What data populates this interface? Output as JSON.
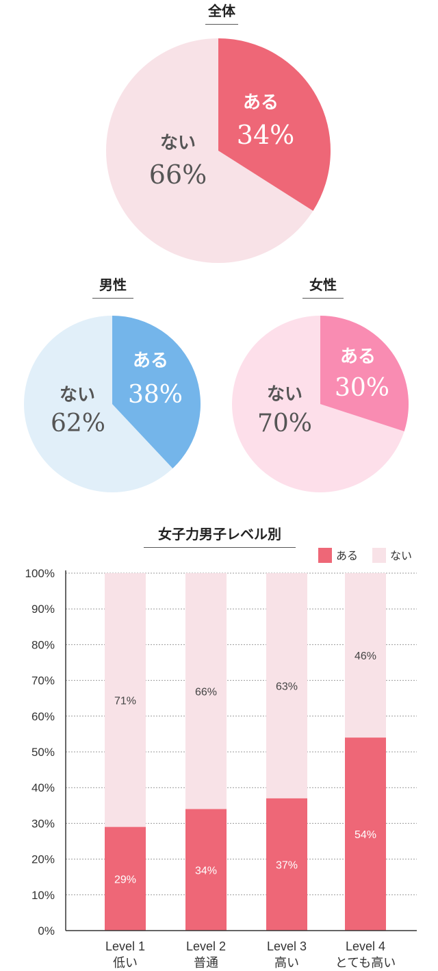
{
  "pies": [
    {
      "title": "全体",
      "yes": {
        "label": "ある",
        "value": 34,
        "display": "34%"
      },
      "no": {
        "label": "ない",
        "value": 66,
        "display": "66%"
      },
      "colors": {
        "yes": "#ee6777",
        "no": "#f8e2e7",
        "yes_text": "#ffffff",
        "no_text": "#555555"
      }
    },
    {
      "title": "男性",
      "yes": {
        "label": "ある",
        "value": 38,
        "display": "38%"
      },
      "no": {
        "label": "ない",
        "value": 62,
        "display": "62%"
      },
      "colors": {
        "yes": "#74b5ea",
        "no": "#e1eff9",
        "yes_text": "#ffffff",
        "no_text": "#555555"
      }
    },
    {
      "title": "女性",
      "yes": {
        "label": "ある",
        "value": 30,
        "display": "30%"
      },
      "no": {
        "label": "ない",
        "value": 70,
        "display": "70%"
      },
      "colors": {
        "yes": "#f98cb2",
        "no": "#fddfea",
        "yes_text": "#ffffff",
        "no_text": "#555555"
      }
    }
  ],
  "chart_data": {
    "type": "bar",
    "stacked": true,
    "title": "女子力男子レベル別",
    "categories": [
      "Level 1",
      "Level 2",
      "Level 3",
      "Level 4"
    ],
    "category_sublabels": [
      "低い",
      "普通",
      "高い",
      "とても高い"
    ],
    "series": [
      {
        "name": "ある",
        "values": [
          29,
          34,
          37,
          54
        ],
        "labels": [
          "29%",
          "34%",
          "37%",
          "54%"
        ],
        "color": "#ee6777"
      },
      {
        "name": "ない",
        "values": [
          71,
          66,
          63,
          46
        ],
        "labels": [
          "71%",
          "66%",
          "63%",
          "46%"
        ],
        "color": "#f8e2e7"
      }
    ],
    "ylim": [
      0,
      100
    ],
    "yticks": [
      "0%",
      "10%",
      "20%",
      "30%",
      "40%",
      "50%",
      "60%",
      "70%",
      "80%",
      "90%",
      "100%"
    ],
    "grid": true,
    "legend": "top-right"
  }
}
